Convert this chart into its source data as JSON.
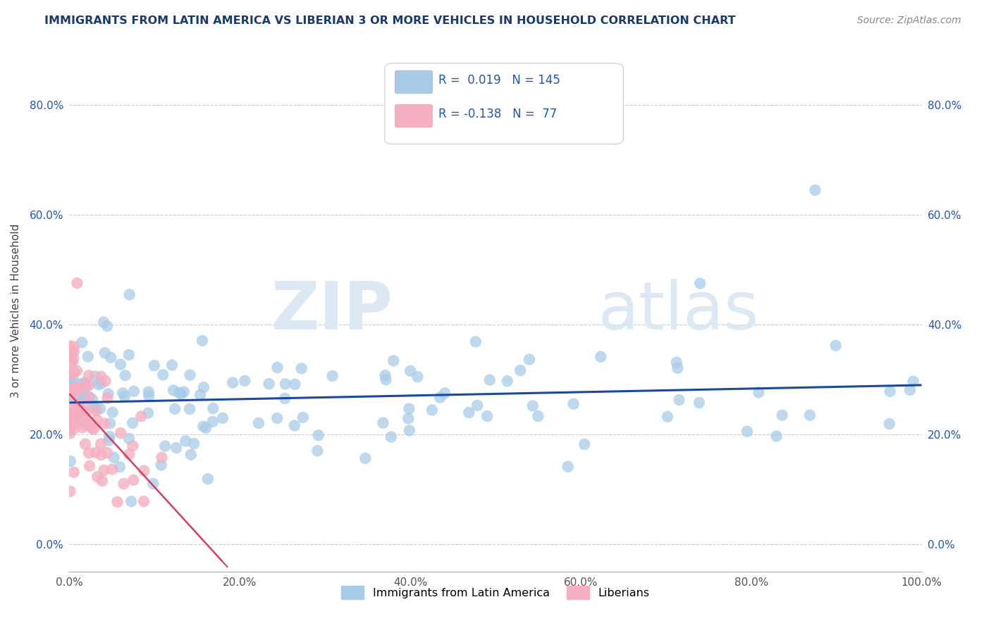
{
  "title": "IMMIGRANTS FROM LATIN AMERICA VS LIBERIAN 3 OR MORE VEHICLES IN HOUSEHOLD CORRELATION CHART",
  "source_text": "Source: ZipAtlas.com",
  "ylabel": "3 or more Vehicles in Household",
  "xlim": [
    0.0,
    1.0
  ],
  "ylim": [
    -0.05,
    0.9
  ],
  "yticks": [
    0.0,
    0.2,
    0.4,
    0.6,
    0.8
  ],
  "ytick_labels": [
    "0.0%",
    "20.0%",
    "40.0%",
    "60.0%",
    "80.0%"
  ],
  "xticks": [
    0.0,
    0.2,
    0.4,
    0.6,
    0.8,
    1.0
  ],
  "xtick_labels": [
    "0.0%",
    "20.0%",
    "40.0%",
    "60.0%",
    "80.0%",
    "100.0%"
  ],
  "legend1_label": "Immigrants from Latin America",
  "legend2_label": "Liberians",
  "R1": 0.019,
  "N1": 145,
  "R2": -0.138,
  "N2": 77,
  "blue_color": "#a8cce8",
  "pink_color": "#f4afc0",
  "line_blue": "#1a4a9e",
  "line_pink": "#d04060",
  "watermark_zip": "ZIP",
  "watermark_atlas": "atlas",
  "title_color": "#1a3a6e",
  "stats_color": "#2255bb",
  "background_color": "#ffffff",
  "grid_color": "#cccccc"
}
